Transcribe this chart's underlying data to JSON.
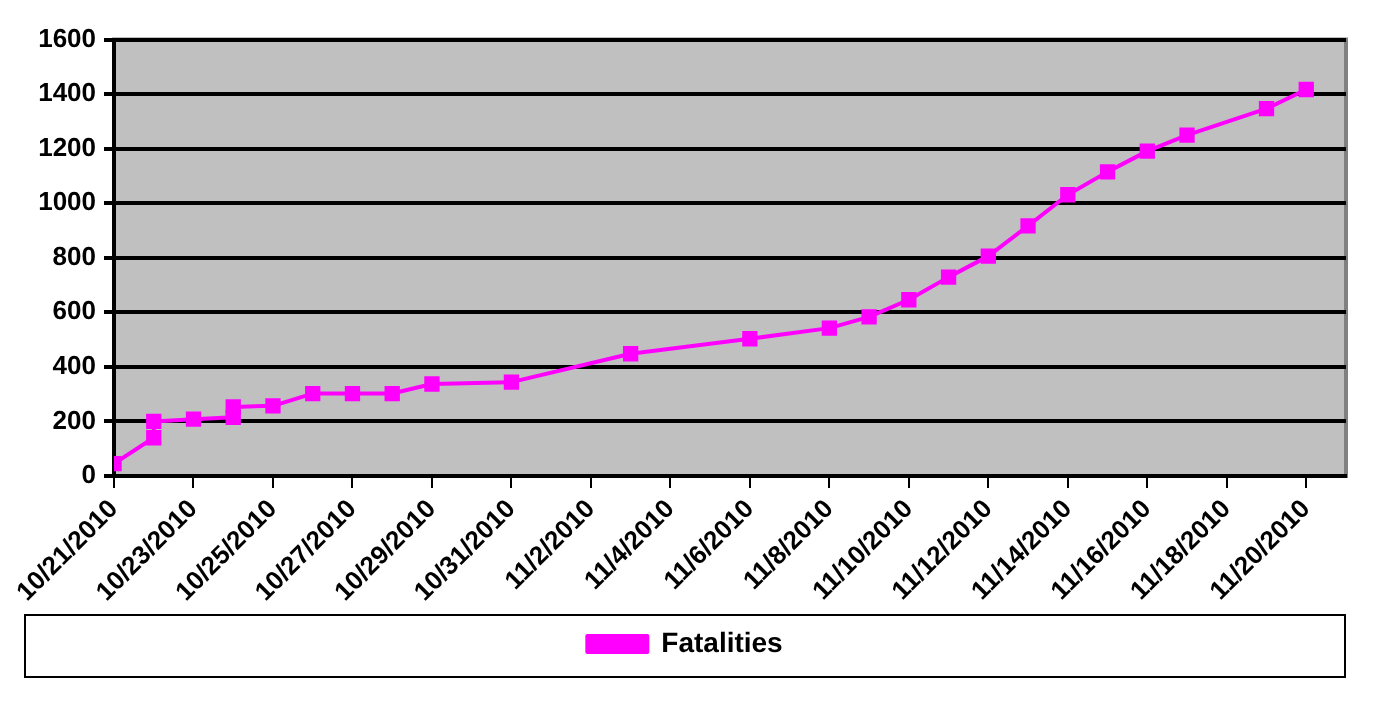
{
  "chart_data": {
    "type": "line",
    "x": [
      "2010-10-21",
      "2010-10-22",
      "2010-10-22",
      "2010-10-23",
      "2010-10-24",
      "2010-10-24",
      "2010-10-25",
      "2010-10-26",
      "2010-10-27",
      "2010-10-28",
      "2010-10-29",
      "2010-10-31",
      "2010-11-03",
      "2010-11-06",
      "2010-11-08",
      "2010-11-09",
      "2010-11-10",
      "2010-11-11",
      "2010-11-12",
      "2010-11-13",
      "2010-11-14",
      "2010-11-15",
      "2010-11-16",
      "2010-11-17",
      "2010-11-19",
      "2010-11-20"
    ],
    "series": [
      {
        "name": "Fatalities",
        "color": "#ff00ff",
        "values": [
          45,
          140,
          200,
          208,
          215,
          253,
          257,
          302,
          302,
          302,
          337,
          344,
          448,
          503,
          542,
          583,
          646,
          729,
          806,
          917,
          1031,
          1115,
          1191,
          1250,
          1347,
          1417
        ]
      }
    ],
    "xlim": [
      "2010-10-21",
      "2010-11-21"
    ],
    "xticks": [
      {
        "value": "2010-10-21",
        "label": "10/21/2010"
      },
      {
        "value": "2010-10-23",
        "label": "10/23/2010"
      },
      {
        "value": "2010-10-25",
        "label": "10/25/2010"
      },
      {
        "value": "2010-10-27",
        "label": "10/27/2010"
      },
      {
        "value": "2010-10-29",
        "label": "10/29/2010"
      },
      {
        "value": "2010-10-31",
        "label": "10/31/2010"
      },
      {
        "value": "2010-11-02",
        "label": "11/2/2010"
      },
      {
        "value": "2010-11-04",
        "label": "11/4/2010"
      },
      {
        "value": "2010-11-06",
        "label": "11/6/2010"
      },
      {
        "value": "2010-11-08",
        "label": "11/8/2010"
      },
      {
        "value": "2010-11-10",
        "label": "11/10/2010"
      },
      {
        "value": "2010-11-12",
        "label": "11/12/2010"
      },
      {
        "value": "2010-11-14",
        "label": "11/14/2010"
      },
      {
        "value": "2010-11-16",
        "label": "11/16/2010"
      },
      {
        "value": "2010-11-18",
        "label": "11/18/2010"
      },
      {
        "value": "2010-11-20",
        "label": "11/20/2010"
      }
    ],
    "ylim": [
      0,
      1600
    ],
    "yticks": [
      0,
      200,
      400,
      600,
      800,
      1000,
      1200,
      1400,
      1600
    ],
    "grid": "y",
    "legend": "bottom",
    "marker": "square",
    "line_style": "solid"
  }
}
